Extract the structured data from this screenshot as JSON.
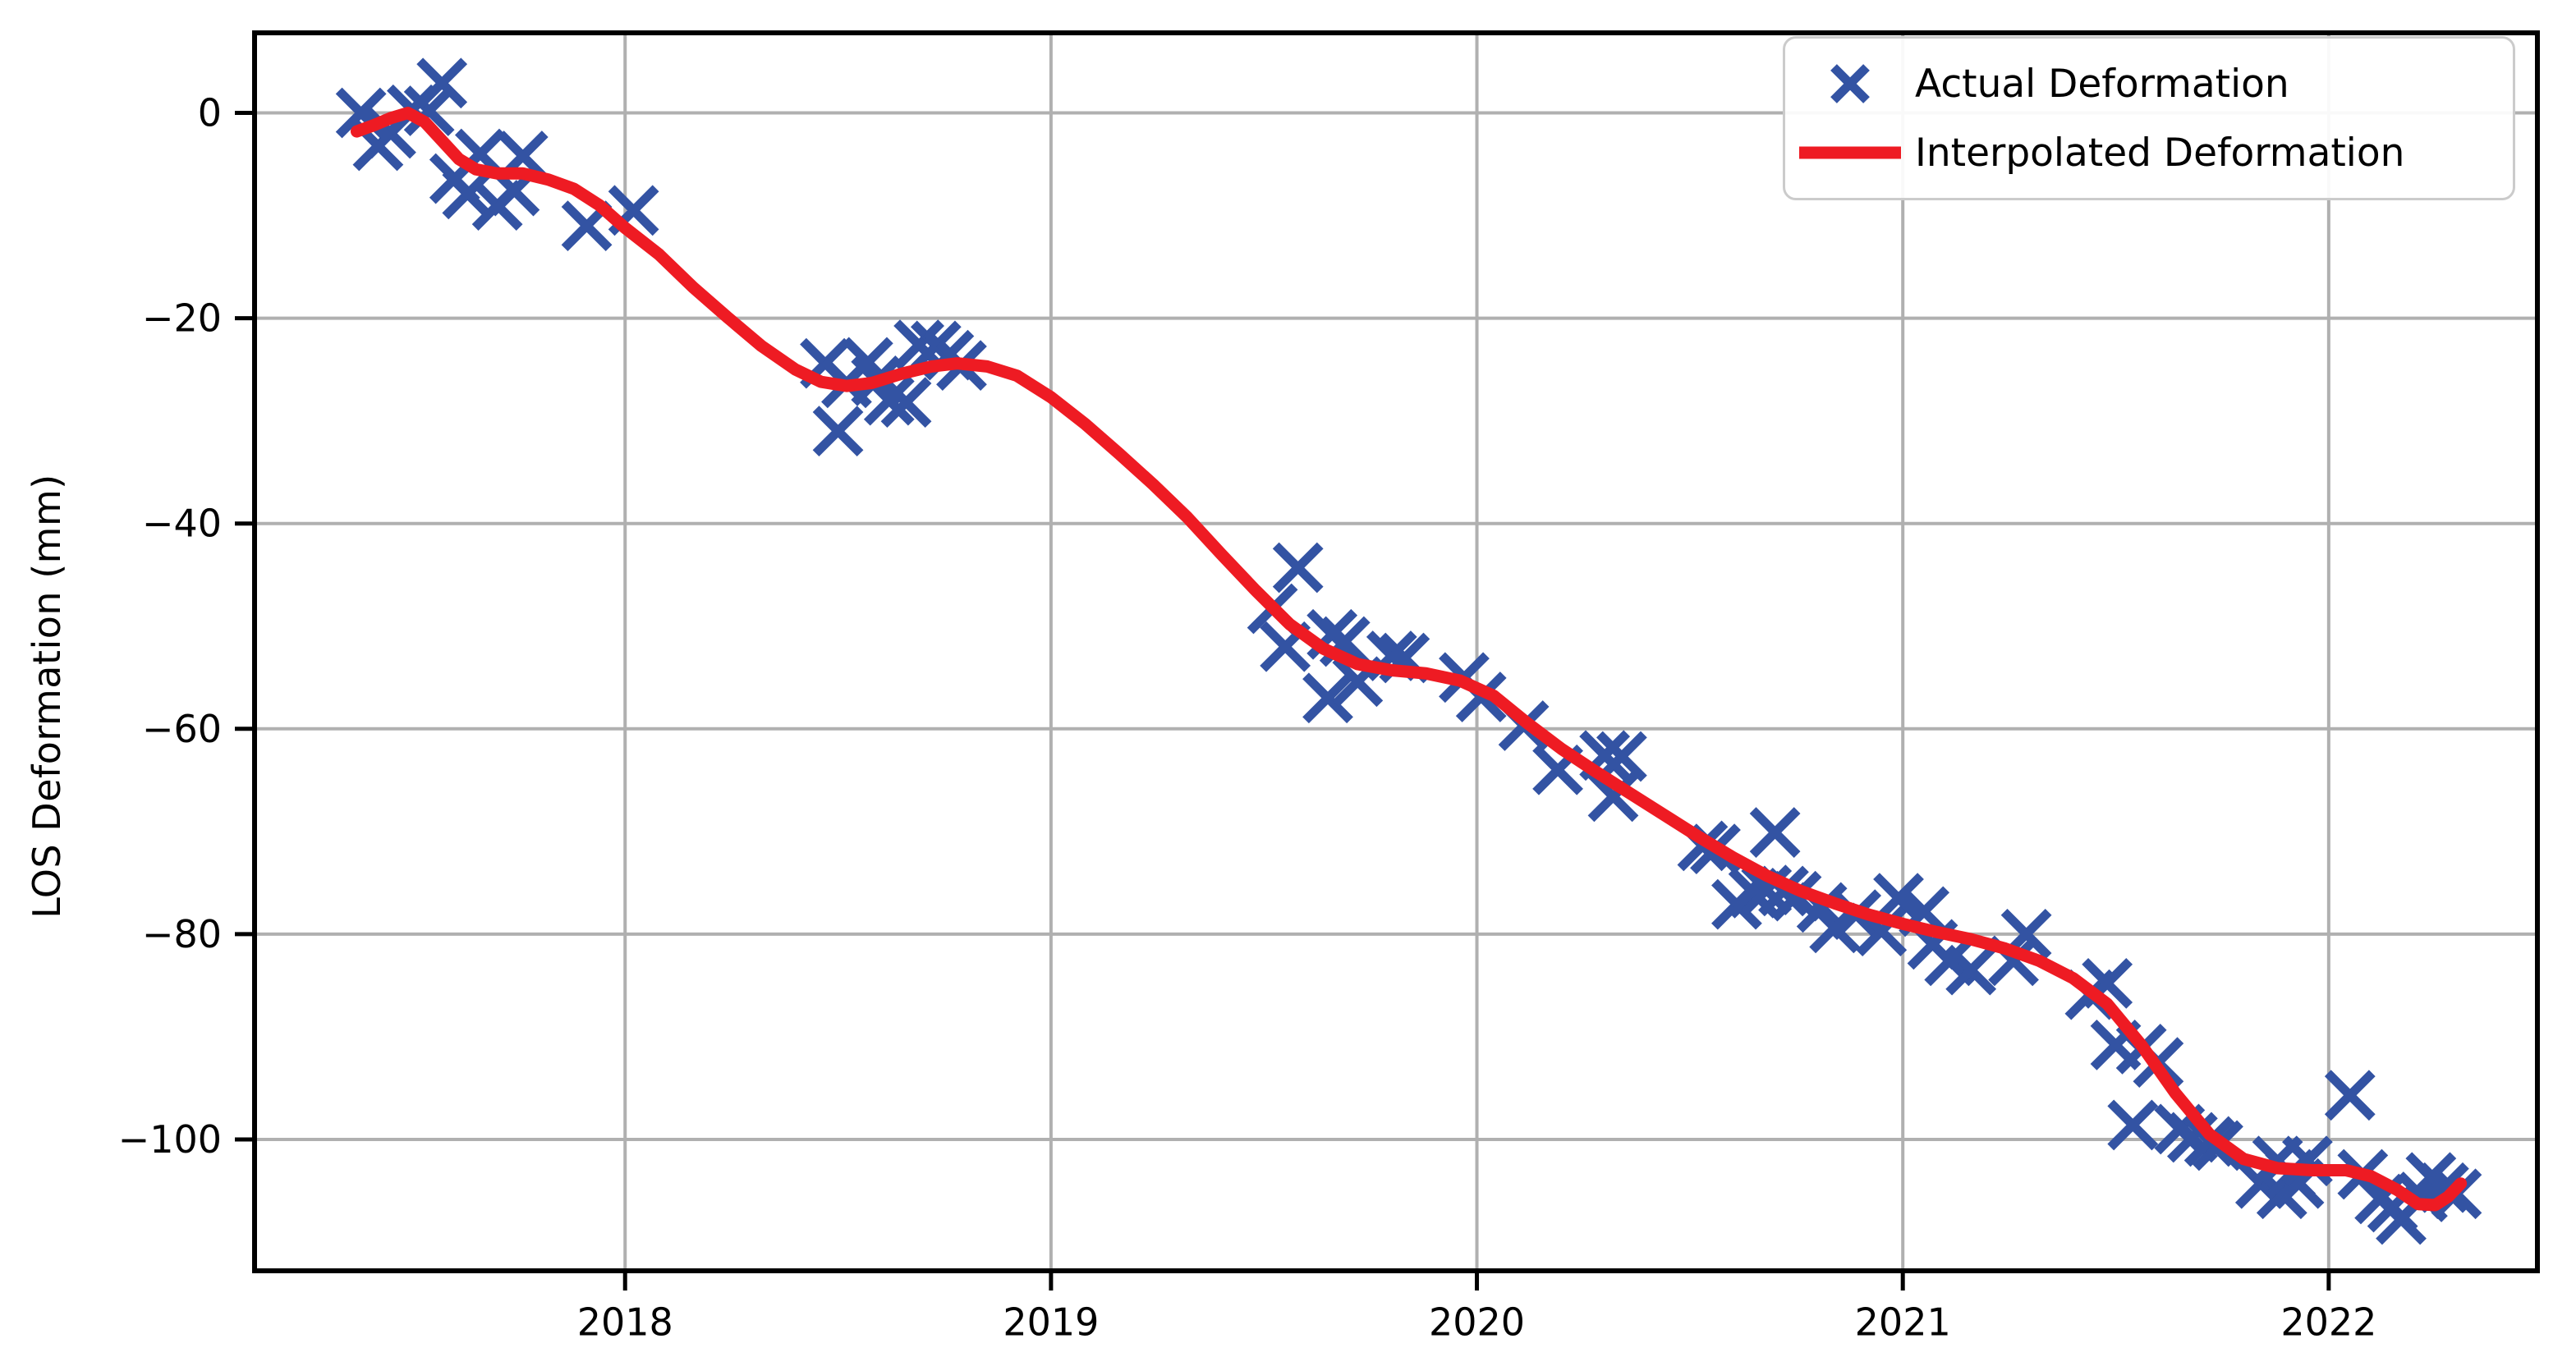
{
  "figure": {
    "background": "#ffffff",
    "ylabel": "LOS Deformation (mm)"
  },
  "legend": {
    "items": [
      {
        "label": "Actual Deformation",
        "marker": "x",
        "color": "#3353a3"
      },
      {
        "label": "Interpolated Deformation",
        "marker": "line",
        "color": "#ee1b23"
      }
    ]
  },
  "chart_data": {
    "type": "scatter",
    "title": "",
    "xlabel": "",
    "ylabel": "LOS Deformation (mm)",
    "xlim": [
      2017.13,
      2022.49
    ],
    "ylim": [
      -112.8,
      7.8
    ],
    "x_ticks": [
      2018,
      2019,
      2020,
      2021,
      2022
    ],
    "x_tick_labels": [
      "2018",
      "2019",
      "2020",
      "2021",
      "2022"
    ],
    "y_ticks": [
      0,
      -20,
      -40,
      -60,
      -80,
      -100
    ],
    "y_tick_labels": [
      "0",
      "−20",
      "−40",
      "−60",
      "−80",
      "−100"
    ],
    "grid": true,
    "legend_position": "upper right",
    "colors": {
      "grid": "#b0b0b0",
      "spine": "#000000",
      "tick": "#000000",
      "actual": "#3353a3",
      "interpolated": "#ee1b23"
    },
    "series": [
      {
        "name": "Actual Deformation",
        "type": "scatter",
        "marker": "x",
        "color": "#3353a3",
        "points": [
          [
            2017.38,
            0.0
          ],
          [
            2017.42,
            -3.2
          ],
          [
            2017.45,
            -2.0
          ],
          [
            2017.5,
            0.3
          ],
          [
            2017.54,
            0.2
          ],
          [
            2017.57,
            2.9
          ],
          [
            2017.6,
            -6.4
          ],
          [
            2017.63,
            -7.9
          ],
          [
            2017.66,
            -4.0
          ],
          [
            2017.7,
            -9.0
          ],
          [
            2017.74,
            -7.6
          ],
          [
            2017.76,
            -4.2
          ],
          [
            2017.91,
            -11.0
          ],
          [
            2018.02,
            -9.5
          ],
          [
            2018.47,
            -24.4
          ],
          [
            2018.5,
            -31.0
          ],
          [
            2018.52,
            -26.3
          ],
          [
            2018.57,
            -24.3
          ],
          [
            2018.59,
            -26.1
          ],
          [
            2018.62,
            -28.0
          ],
          [
            2018.66,
            -28.2
          ],
          [
            2018.69,
            -22.6
          ],
          [
            2018.73,
            -22.7
          ],
          [
            2018.76,
            -23.6
          ],
          [
            2018.79,
            -24.6
          ],
          [
            2019.52,
            -48.3
          ],
          [
            2019.55,
            -52.0
          ],
          [
            2019.58,
            -44.3
          ],
          [
            2019.65,
            -57.0
          ],
          [
            2019.66,
            -50.8
          ],
          [
            2019.69,
            -51.5
          ],
          [
            2019.72,
            -55.4
          ],
          [
            2019.8,
            -52.9
          ],
          [
            2019.83,
            -53.1
          ],
          [
            2019.97,
            -55.0
          ],
          [
            2020.01,
            -56.9
          ],
          [
            2020.11,
            -59.7
          ],
          [
            2020.19,
            -64.0
          ],
          [
            2020.3,
            -62.6
          ],
          [
            2020.32,
            -66.6
          ],
          [
            2020.34,
            -62.7
          ],
          [
            2020.53,
            -71.4
          ],
          [
            2020.56,
            -71.7
          ],
          [
            2020.61,
            -77.1
          ],
          [
            2020.65,
            -76.0
          ],
          [
            2020.68,
            -75.7
          ],
          [
            2020.7,
            -70.1
          ],
          [
            2020.72,
            -75.8
          ],
          [
            2020.75,
            -76.3
          ],
          [
            2020.81,
            -77.4
          ],
          [
            2020.84,
            -79.4
          ],
          [
            2020.89,
            -78.1
          ],
          [
            2020.95,
            -79.7
          ],
          [
            2020.99,
            -76.5
          ],
          [
            2021.05,
            -77.8
          ],
          [
            2021.07,
            -81.0
          ],
          [
            2021.11,
            -82.6
          ],
          [
            2021.16,
            -83.5
          ],
          [
            2021.26,
            -82.6
          ],
          [
            2021.29,
            -80.0
          ],
          [
            2021.44,
            -85.9
          ],
          [
            2021.48,
            -84.8
          ],
          [
            2021.5,
            -90.8
          ],
          [
            2021.54,
            -98.6
          ],
          [
            2021.56,
            -91.2
          ],
          [
            2021.6,
            -92.5
          ],
          [
            2021.65,
            -99.0
          ],
          [
            2021.68,
            -99.8
          ],
          [
            2021.72,
            -100.2
          ],
          [
            2021.74,
            -100.6
          ],
          [
            2021.84,
            -104.3
          ],
          [
            2021.88,
            -102.1
          ],
          [
            2021.89,
            -105.3
          ],
          [
            2021.91,
            -103.4
          ],
          [
            2021.93,
            -104.3
          ],
          [
            2021.95,
            -102.1
          ],
          [
            2022.05,
            -95.7
          ],
          [
            2022.08,
            -103.4
          ],
          [
            2022.12,
            -105.8
          ],
          [
            2022.15,
            -106.6
          ],
          [
            2022.17,
            -107.8
          ],
          [
            2022.22,
            -105.6
          ],
          [
            2022.24,
            -103.7
          ],
          [
            2022.27,
            -104.7
          ],
          [
            2022.3,
            -105.3
          ]
        ]
      },
      {
        "name": "Interpolated Deformation",
        "type": "line",
        "color": "#ee1b23",
        "points": [
          [
            2017.37,
            -1.8
          ],
          [
            2017.41,
            -1.2
          ],
          [
            2017.45,
            -0.5
          ],
          [
            2017.49,
            0.0
          ],
          [
            2017.53,
            -0.9
          ],
          [
            2017.57,
            -2.7
          ],
          [
            2017.61,
            -4.5
          ],
          [
            2017.65,
            -5.5
          ],
          [
            2017.7,
            -5.9
          ],
          [
            2017.76,
            -5.9
          ],
          [
            2017.82,
            -6.5
          ],
          [
            2017.88,
            -7.4
          ],
          [
            2017.94,
            -9.0
          ],
          [
            2018.0,
            -11.2
          ],
          [
            2018.08,
            -13.8
          ],
          [
            2018.16,
            -17.0
          ],
          [
            2018.24,
            -19.9
          ],
          [
            2018.32,
            -22.7
          ],
          [
            2018.4,
            -25.0
          ],
          [
            2018.46,
            -26.2
          ],
          [
            2018.52,
            -26.6
          ],
          [
            2018.58,
            -26.3
          ],
          [
            2018.65,
            -25.4
          ],
          [
            2018.72,
            -24.7
          ],
          [
            2018.78,
            -24.4
          ],
          [
            2018.85,
            -24.7
          ],
          [
            2018.92,
            -25.6
          ],
          [
            2019.0,
            -27.7
          ],
          [
            2019.08,
            -30.3
          ],
          [
            2019.16,
            -33.2
          ],
          [
            2019.24,
            -36.2
          ],
          [
            2019.32,
            -39.4
          ],
          [
            2019.4,
            -43.0
          ],
          [
            2019.48,
            -46.5
          ],
          [
            2019.56,
            -49.8
          ],
          [
            2019.64,
            -52.2
          ],
          [
            2019.72,
            -53.7
          ],
          [
            2019.8,
            -54.3
          ],
          [
            2019.88,
            -54.6
          ],
          [
            2019.96,
            -55.3
          ],
          [
            2020.04,
            -56.8
          ],
          [
            2020.12,
            -59.5
          ],
          [
            2020.2,
            -62.0
          ],
          [
            2020.28,
            -64.2
          ],
          [
            2020.36,
            -66.3
          ],
          [
            2020.44,
            -68.4
          ],
          [
            2020.52,
            -70.5
          ],
          [
            2020.6,
            -72.5
          ],
          [
            2020.68,
            -74.3
          ],
          [
            2020.76,
            -75.8
          ],
          [
            2020.84,
            -77.0
          ],
          [
            2020.92,
            -78.1
          ],
          [
            2021.0,
            -79.0
          ],
          [
            2021.08,
            -79.8
          ],
          [
            2021.16,
            -80.5
          ],
          [
            2021.24,
            -81.4
          ],
          [
            2021.32,
            -82.6
          ],
          [
            2021.4,
            -84.3
          ],
          [
            2021.48,
            -86.8
          ],
          [
            2021.56,
            -90.8
          ],
          [
            2021.64,
            -95.5
          ],
          [
            2021.72,
            -99.5
          ],
          [
            2021.8,
            -101.9
          ],
          [
            2021.88,
            -102.8
          ],
          [
            2021.96,
            -103.0
          ],
          [
            2022.04,
            -103.0
          ],
          [
            2022.1,
            -103.6
          ],
          [
            2022.16,
            -104.9
          ],
          [
            2022.21,
            -106.3
          ],
          [
            2022.25,
            -106.4
          ],
          [
            2022.28,
            -105.6
          ],
          [
            2022.31,
            -104.3
          ]
        ]
      }
    ]
  }
}
